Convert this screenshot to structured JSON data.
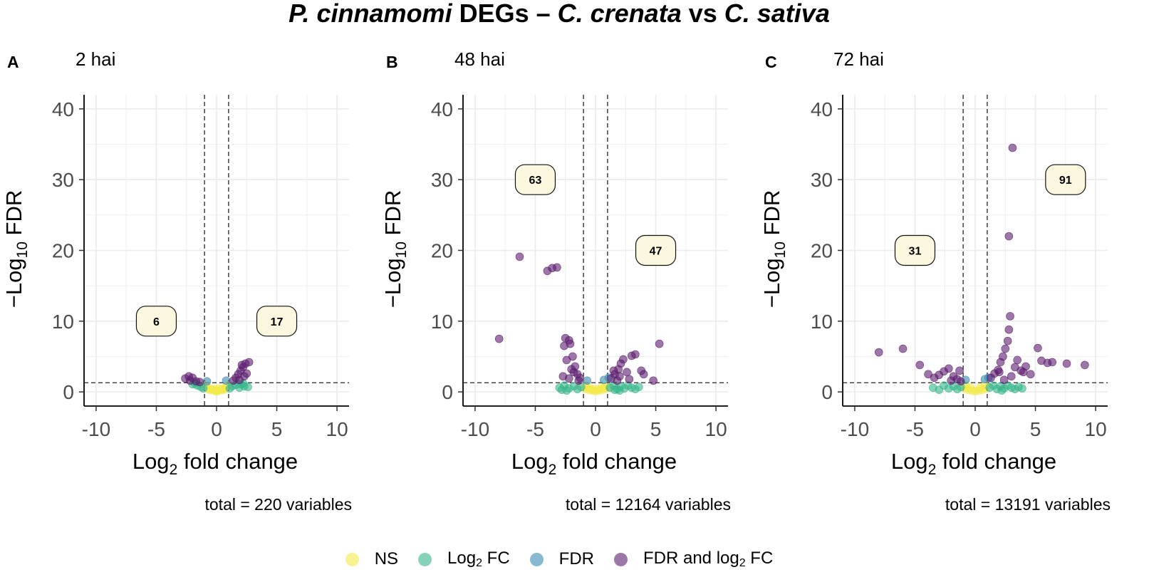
{
  "title": {
    "part1": "P. cinnamomi",
    "part2": " DEGs – ",
    "part3": "C. crenata",
    "part4": " vs ",
    "part5": "C. sativa"
  },
  "colors": {
    "NS": "#f4e94a",
    "Log2FC": "#36b58a",
    "FDR": "#3b8bb0",
    "FDR_and_log2FC": "#5b1d6e"
  },
  "legend": [
    {
      "key": "NS",
      "label": "NS",
      "sub": "",
      "label_rest": ""
    },
    {
      "key": "Log2FC",
      "label": "Log",
      "sub": "2",
      "label_rest": " FC"
    },
    {
      "key": "FDR",
      "label": "FDR",
      "sub": "",
      "label_rest": ""
    },
    {
      "key": "FDR_and_log2FC",
      "label": "FDR and log",
      "sub": "2",
      "label_rest": " FC"
    }
  ],
  "chart_data": [
    {
      "type": "scatter",
      "panel_letter": "A",
      "subtitle": "2 hai",
      "xlabel": "Log2 fold change",
      "ylabel": "−Log10 FDR",
      "xlim": [
        -11,
        11
      ],
      "ylim": [
        -2,
        42
      ],
      "xticks": [
        -10,
        -5,
        0,
        5,
        10
      ],
      "yticks": [
        0,
        10,
        20,
        30,
        40
      ],
      "vlines": [
        -1,
        1
      ],
      "hline": 1.3,
      "caption": "total = 220 variables",
      "annotations": [
        {
          "text": "6",
          "x": -5,
          "y": 10
        },
        {
          "text": "17",
          "x": 5,
          "y": 10
        }
      ],
      "series": [
        {
          "name": "NS",
          "points": [
            [
              -0.9,
              0.9
            ],
            [
              -0.7,
              0.6
            ],
            [
              -0.5,
              0.4
            ],
            [
              -0.3,
              0.25
            ],
            [
              -0.1,
              0.15
            ],
            [
              0.1,
              0.15
            ],
            [
              0.3,
              0.25
            ],
            [
              0.5,
              0.4
            ],
            [
              0.7,
              0.6
            ],
            [
              0.9,
              0.9
            ],
            [
              -0.6,
              0.3
            ],
            [
              0.0,
              0.1
            ],
            [
              0.6,
              0.3
            ],
            [
              -0.2,
              0.4
            ],
            [
              0.2,
              0.5
            ]
          ]
        },
        {
          "name": "Log2FC",
          "points": [
            [
              -2.0,
              1.1
            ],
            [
              -1.6,
              0.9
            ],
            [
              -1.3,
              0.7
            ],
            [
              -1.8,
              1.2
            ],
            [
              1.3,
              0.8
            ],
            [
              1.6,
              1.0
            ],
            [
              2.0,
              1.1
            ],
            [
              2.3,
              0.8
            ],
            [
              2.6,
              0.7
            ],
            [
              1.1,
              0.5
            ],
            [
              -1.1,
              0.5
            ],
            [
              1.9,
              0.6
            ],
            [
              2.2,
              1.2
            ]
          ]
        },
        {
          "name": "FDR",
          "points": [
            [
              -0.8,
              1.5
            ],
            [
              0.8,
              1.6
            ]
          ]
        },
        {
          "name": "FDR and log2 FC",
          "points": [
            [
              -2.6,
              1.9
            ],
            [
              -2.2,
              1.6
            ],
            [
              -2.0,
              2.0
            ],
            [
              -1.7,
              1.5
            ],
            [
              -1.4,
              1.4
            ],
            [
              -2.3,
              2.2
            ],
            [
              1.4,
              1.6
            ],
            [
              1.6,
              2.0
            ],
            [
              1.8,
              2.5
            ],
            [
              2.0,
              3.0
            ],
            [
              2.2,
              3.5
            ],
            [
              2.4,
              4.0
            ],
            [
              2.7,
              4.2
            ],
            [
              2.1,
              3.8
            ],
            [
              1.9,
              1.7
            ],
            [
              2.5,
              2.6
            ],
            [
              2.3,
              2.2
            ]
          ]
        }
      ]
    },
    {
      "type": "scatter",
      "panel_letter": "B",
      "subtitle": "48 hai",
      "xlabel": "Log2 fold change",
      "ylabel": "−Log10 FDR",
      "xlim": [
        -11,
        11
      ],
      "ylim": [
        -2,
        42
      ],
      "xticks": [
        -10,
        -5,
        0,
        5,
        10
      ],
      "yticks": [
        0,
        10,
        20,
        30,
        40
      ],
      "vlines": [
        -1,
        1
      ],
      "hline": 1.3,
      "caption": "total = 12164 variables",
      "annotations": [
        {
          "text": "63",
          "x": -5,
          "y": 30
        },
        {
          "text": "47",
          "x": 5,
          "y": 20
        }
      ],
      "series": [
        {
          "name": "NS",
          "points": [
            [
              -0.9,
              0.5
            ],
            [
              -0.6,
              0.3
            ],
            [
              -0.3,
              0.2
            ],
            [
              0.0,
              0.1
            ],
            [
              0.3,
              0.2
            ],
            [
              0.6,
              0.3
            ],
            [
              0.9,
              0.5
            ],
            [
              -0.8,
              0.8
            ],
            [
              0.8,
              0.8
            ],
            [
              -0.5,
              0.6
            ],
            [
              0.5,
              0.6
            ],
            [
              -0.2,
              0.4
            ],
            [
              0.2,
              0.4
            ]
          ]
        },
        {
          "name": "Log2FC",
          "points": [
            [
              -3.0,
              0.6
            ],
            [
              -2.6,
              0.9
            ],
            [
              -2.2,
              0.5
            ],
            [
              -1.8,
              0.8
            ],
            [
              -1.5,
              0.4
            ],
            [
              -1.2,
              0.7
            ],
            [
              -2.8,
              0.3
            ],
            [
              -2.4,
              0.2
            ],
            [
              1.2,
              0.6
            ],
            [
              1.5,
              0.9
            ],
            [
              1.8,
              0.4
            ],
            [
              2.1,
              0.8
            ],
            [
              2.4,
              0.5
            ],
            [
              2.7,
              0.9
            ],
            [
              3.0,
              0.6
            ],
            [
              3.3,
              0.4
            ],
            [
              3.6,
              0.7
            ],
            [
              2.0,
              0.2
            ],
            [
              1.6,
              0.3
            ]
          ]
        },
        {
          "name": "FDR",
          "points": [
            [
              -0.7,
              1.6
            ],
            [
              0.7,
              1.7
            ],
            [
              1.1,
              2.0
            ]
          ]
        },
        {
          "name": "FDR and log2 FC",
          "points": [
            [
              -8.0,
              7.5
            ],
            [
              -6.3,
              19.1
            ],
            [
              -4.0,
              17.1
            ],
            [
              -3.6,
              17.5
            ],
            [
              -3.2,
              17.6
            ],
            [
              -2.5,
              7.6
            ],
            [
              -2.2,
              7.3
            ],
            [
              -2.6,
              6.5
            ],
            [
              -2.1,
              6.8
            ],
            [
              -1.9,
              5.0
            ],
            [
              -2.4,
              4.5
            ],
            [
              -2.0,
              3.2
            ],
            [
              -1.8,
              2.8
            ],
            [
              -1.5,
              2.5
            ],
            [
              -1.3,
              2.0
            ],
            [
              -2.7,
              2.2
            ],
            [
              -2.2,
              1.9
            ],
            [
              -1.7,
              3.6
            ],
            [
              -1.4,
              1.6
            ],
            [
              1.3,
              1.9
            ],
            [
              1.6,
              2.5
            ],
            [
              1.9,
              3.2
            ],
            [
              2.1,
              4.0
            ],
            [
              2.3,
              4.6
            ],
            [
              2.6,
              2.8
            ],
            [
              3.0,
              5.1
            ],
            [
              3.3,
              5.3
            ],
            [
              3.8,
              3.0
            ],
            [
              4.0,
              2.5
            ],
            [
              4.8,
              1.6
            ],
            [
              5.3,
              6.8
            ],
            [
              1.5,
              3.0
            ],
            [
              2.0,
              2.2
            ],
            [
              2.8,
              1.8
            ],
            [
              1.8,
              1.6
            ]
          ]
        }
      ]
    },
    {
      "type": "scatter",
      "panel_letter": "C",
      "subtitle": "72 hai",
      "xlabel": "Log2 fold change",
      "ylabel": "−Log10 FDR",
      "xlim": [
        -11,
        11
      ],
      "ylim": [
        -2,
        42
      ],
      "xticks": [
        -10,
        -5,
        0,
        5,
        10
      ],
      "yticks": [
        0,
        10,
        20,
        30,
        40
      ],
      "vlines": [
        -1,
        1
      ],
      "hline": 1.3,
      "caption": "total = 13191 variables",
      "annotations": [
        {
          "text": "31",
          "x": -5,
          "y": 20
        },
        {
          "text": "91",
          "x": 7.5,
          "y": 30
        }
      ],
      "series": [
        {
          "name": "NS",
          "points": [
            [
              -0.9,
              0.5
            ],
            [
              -0.6,
              0.3
            ],
            [
              -0.3,
              0.2
            ],
            [
              0.0,
              0.1
            ],
            [
              0.3,
              0.2
            ],
            [
              0.6,
              0.3
            ],
            [
              0.9,
              0.5
            ],
            [
              -0.8,
              0.9
            ],
            [
              0.8,
              0.9
            ],
            [
              -0.4,
              0.6
            ],
            [
              0.4,
              0.6
            ]
          ]
        },
        {
          "name": "Log2FC",
          "points": [
            [
              -3.5,
              0.6
            ],
            [
              -3.0,
              0.3
            ],
            [
              -2.6,
              0.9
            ],
            [
              -2.2,
              0.5
            ],
            [
              -1.8,
              0.8
            ],
            [
              -1.5,
              0.4
            ],
            [
              -1.2,
              0.7
            ],
            [
              1.2,
              0.6
            ],
            [
              1.5,
              0.9
            ],
            [
              1.8,
              0.4
            ],
            [
              2.1,
              0.8
            ],
            [
              2.4,
              0.5
            ],
            [
              2.7,
              0.9
            ],
            [
              3.0,
              0.6
            ],
            [
              3.3,
              0.4
            ],
            [
              3.6,
              0.7
            ],
            [
              3.9,
              0.5
            ],
            [
              2.2,
              0.2
            ]
          ]
        },
        {
          "name": "FDR",
          "points": [
            [
              -0.8,
              1.7
            ],
            [
              0.8,
              1.8
            ],
            [
              1.1,
              2.0
            ]
          ]
        },
        {
          "name": "FDR and log2 FC",
          "points": [
            [
              -8.0,
              5.6
            ],
            [
              -6.0,
              6.1
            ],
            [
              -4.6,
              3.8
            ],
            [
              -3.9,
              2.5
            ],
            [
              -3.4,
              2.0
            ],
            [
              -3.0,
              2.4
            ],
            [
              -2.6,
              2.9
            ],
            [
              -2.2,
              3.3
            ],
            [
              -1.8,
              2.2
            ],
            [
              -1.5,
              1.8
            ],
            [
              -1.3,
              3.0
            ],
            [
              -2.0,
              1.6
            ],
            [
              -1.2,
              1.5
            ],
            [
              1.3,
              2.0
            ],
            [
              1.6,
              2.6
            ],
            [
              1.9,
              3.1
            ],
            [
              2.1,
              4.2
            ],
            [
              2.3,
              5.0
            ],
            [
              2.5,
              6.1
            ],
            [
              2.7,
              7.2
            ],
            [
              2.8,
              8.8
            ],
            [
              2.9,
              10.7
            ],
            [
              2.8,
              22.0
            ],
            [
              3.1,
              34.5
            ],
            [
              3.3,
              3.5
            ],
            [
              3.5,
              4.5
            ],
            [
              3.8,
              3.0
            ],
            [
              4.0,
              2.8
            ],
            [
              4.2,
              3.6
            ],
            [
              4.6,
              2.5
            ],
            [
              5.2,
              6.2
            ],
            [
              5.5,
              4.4
            ],
            [
              6.0,
              4.1
            ],
            [
              6.4,
              4.2
            ],
            [
              7.6,
              4.0
            ],
            [
              9.1,
              3.8
            ],
            [
              3.0,
              2.2
            ],
            [
              2.4,
              1.7
            ],
            [
              2.0,
              2.8
            ]
          ]
        }
      ]
    }
  ]
}
